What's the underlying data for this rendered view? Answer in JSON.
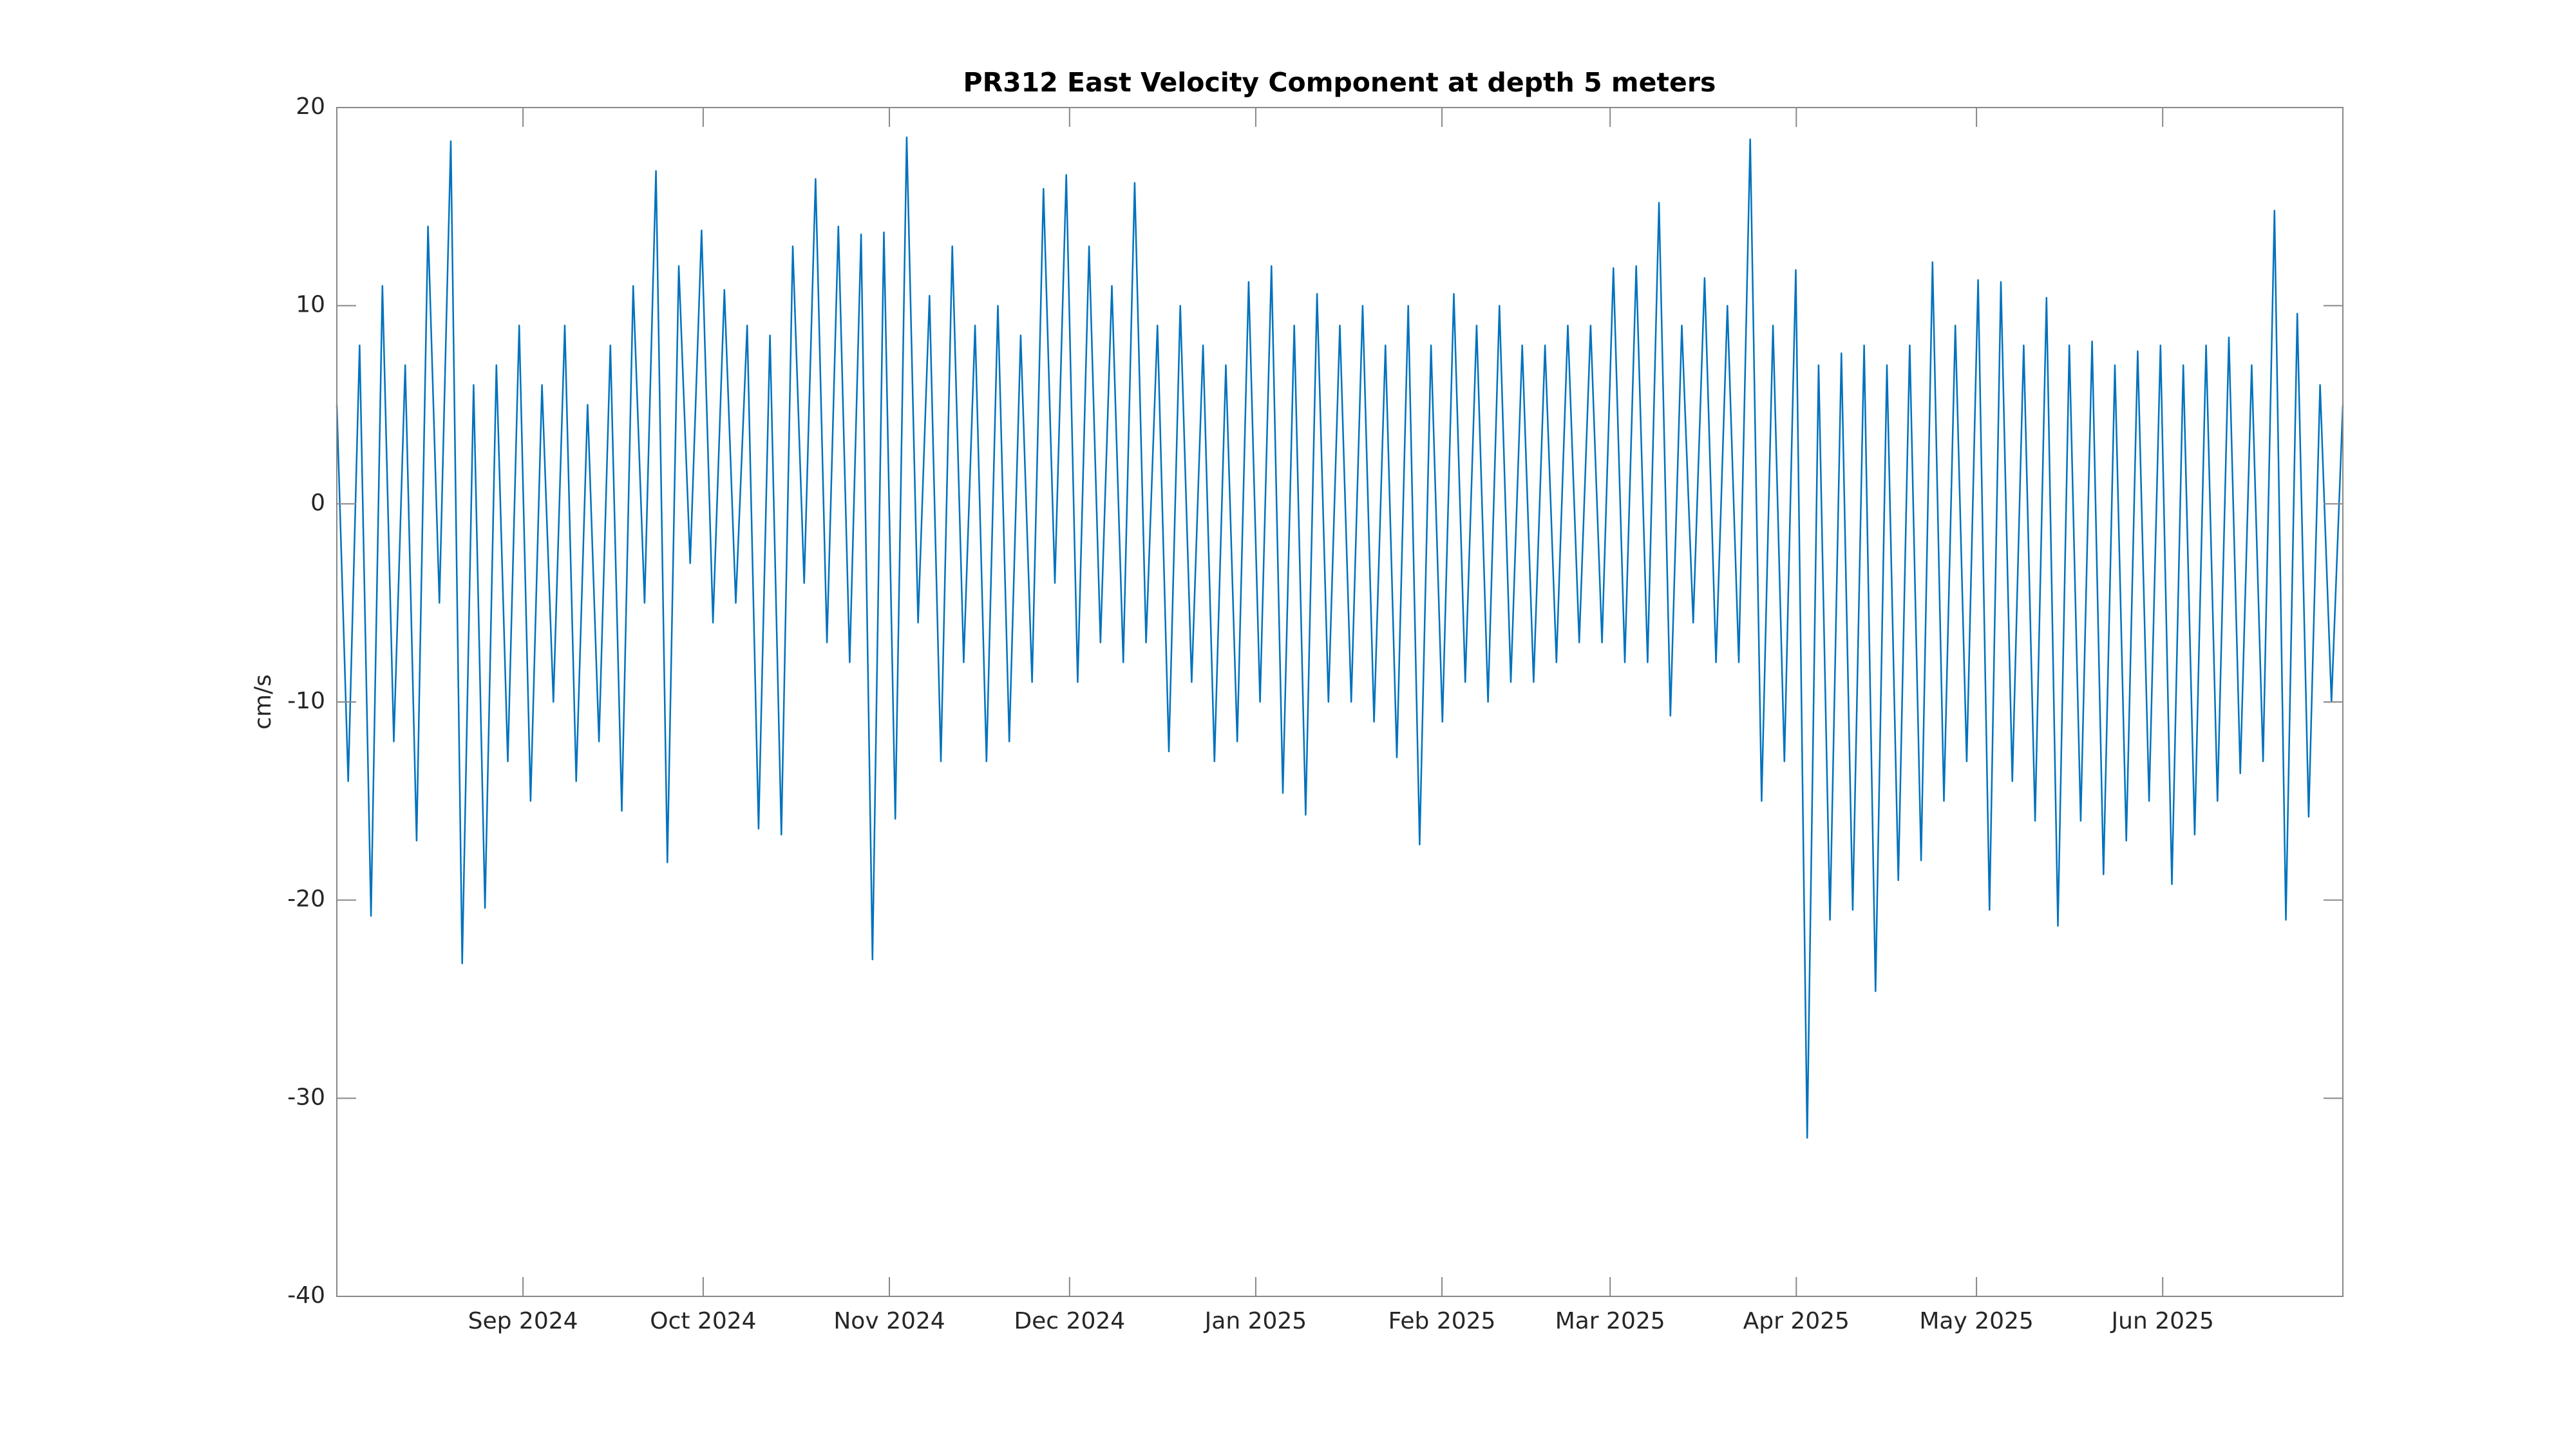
{
  "chart_data": {
    "type": "line",
    "title": "PR312 East Velocity Component at depth 5 meters",
    "y_label": "cm/s",
    "xlim": [
      "2024-08",
      "2025-07"
    ],
    "xticks": [
      {
        "value": "2024-09",
        "label": "Sep 2024"
      },
      {
        "value": "2024-10",
        "label": "Oct 2024"
      },
      {
        "value": "2024-11",
        "label": "Nov 2024"
      },
      {
        "value": "2024-12",
        "label": "Dec 2024"
      },
      {
        "value": "2025-01",
        "label": "Jan 2025"
      },
      {
        "value": "2025-02",
        "label": "Feb 2025"
      },
      {
        "value": "2025-03",
        "label": "Mar 2025"
      },
      {
        "value": "2025-04",
        "label": "Apr 2025"
      },
      {
        "value": "2025-05",
        "label": "May 2025"
      },
      {
        "value": "2025-06",
        "label": "Jun 2025"
      }
    ],
    "ylim": [
      -40,
      20
    ],
    "yticks": [
      -40,
      -30,
      -20,
      -10,
      0,
      10,
      20
    ],
    "grid": false,
    "series": [
      {
        "name": "East velocity",
        "color": "#0072bd",
        "values": [
          5,
          -14,
          8,
          -20.8,
          11,
          -12,
          7,
          -17,
          14,
          -5,
          18.3,
          -23.2,
          6,
          -20.4,
          7,
          -13,
          9,
          -15,
          6,
          -10,
          9,
          -14,
          5,
          -12,
          8,
          -15.5,
          11,
          -5,
          16.8,
          -18.1,
          12,
          -3,
          13.8,
          -6,
          10.8,
          -5,
          9,
          -16.4,
          8.5,
          -16.7,
          13,
          -4,
          16.4,
          -7,
          14,
          -8,
          13.6,
          -23,
          13.7,
          -15.9,
          18.5,
          -6,
          10.5,
          -13,
          13,
          -8,
          9,
          -13,
          10,
          -12,
          8.5,
          -9,
          15.9,
          -4,
          16.6,
          -9,
          13,
          -7,
          11,
          -8,
          16.2,
          -7,
          9,
          -12.5,
          10,
          -9,
          8,
          -13,
          7,
          -12,
          11.2,
          -10,
          12,
          -14.6,
          9,
          -15.7,
          10.6,
          -10,
          9,
          -10,
          10,
          -11,
          8,
          -12.8,
          10,
          -17.2,
          8,
          -11,
          10.6,
          -9,
          9,
          -10,
          10,
          -9,
          8,
          -9,
          8,
          -8,
          9,
          -7,
          9,
          -7,
          11.9,
          -8,
          12,
          -8,
          15.2,
          -10.7,
          9,
          -6,
          11.4,
          -8,
          10,
          -8,
          18.4,
          -15,
          9,
          -13,
          11.8,
          -32,
          7,
          -21,
          7.6,
          -20.5,
          8,
          -24.6,
          7,
          -19,
          8,
          -18,
          12.2,
          -15,
          9,
          -13,
          11.3,
          -20.5,
          11.2,
          -14,
          8,
          -16,
          10.4,
          -21.3,
          8,
          -16,
          8.2,
          -18.7,
          7,
          -17,
          7.7,
          -15,
          8,
          -19.2,
          7,
          -16.7,
          8,
          -15,
          8.4,
          -13.6,
          7,
          -13,
          14.8,
          -21,
          9.6,
          -15.8,
          6,
          -10,
          5
        ]
      }
    ]
  }
}
